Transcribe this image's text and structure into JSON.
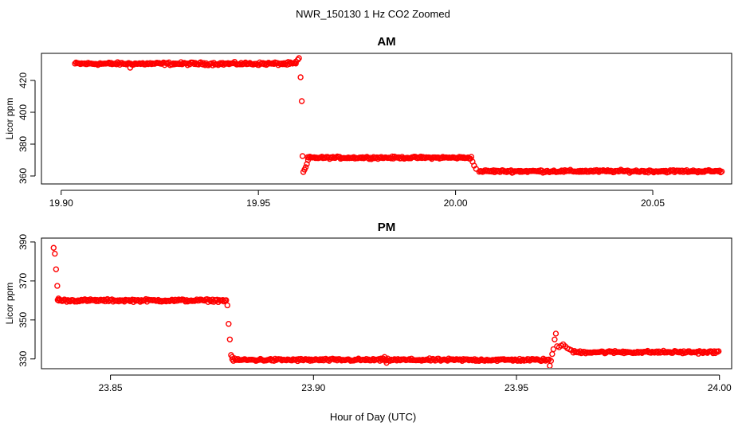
{
  "chart_data": [
    {
      "type": "scatter",
      "suptitle": "NWR_150130  1 Hz CO2 Zoomed",
      "title": "AM",
      "xlabel": "",
      "ylabel": "Licor ppm",
      "xlim": [
        19.895,
        20.07
      ],
      "ylim": [
        355,
        437
      ],
      "xticks": [
        {
          "value": 19.9,
          "label": "19.90"
        },
        {
          "value": 19.95,
          "label": "19.95"
        },
        {
          "value": 20.0,
          "label": "20.00"
        },
        {
          "value": 20.05,
          "label": "20.05"
        }
      ],
      "yticks": [
        {
          "value": 360,
          "label": "360"
        },
        {
          "value": 380,
          "label": "380"
        },
        {
          "value": 400,
          "label": "400"
        },
        {
          "value": 420,
          "label": "420"
        }
      ],
      "marker": {
        "shape": "open-circle",
        "color": "#ff0000"
      },
      "segments": [
        {
          "x_start": 19.9035,
          "x_end": 19.9595,
          "y": 430.5,
          "noise": 0.8
        },
        {
          "x_start": 19.9625,
          "x_end": 20.004,
          "y": 371.5,
          "noise": 0.6
        },
        {
          "x_start": 20.006,
          "x_end": 20.0675,
          "y": 363.0,
          "noise": 0.7
        }
      ],
      "points": [
        [
          19.9175,
          428.0
        ],
        [
          19.9595,
          431.8
        ],
        [
          19.96,
          433.0
        ],
        [
          19.9603,
          434.0
        ],
        [
          19.9607,
          422.0
        ],
        [
          19.961,
          407.0
        ],
        [
          19.9612,
          372.5
        ],
        [
          19.9614,
          362.5
        ],
        [
          19.9617,
          364.0
        ],
        [
          19.962,
          365.5
        ],
        [
          19.9623,
          367.5
        ],
        [
          19.9626,
          370.0
        ],
        [
          20.0043,
          369.0
        ],
        [
          20.0047,
          366.5
        ],
        [
          20.0052,
          364.5
        ]
      ]
    },
    {
      "type": "scatter",
      "title": "PM",
      "xlabel": "Hour of Day (UTC)",
      "ylabel": "Licor ppm",
      "xlim": [
        23.833,
        24.003
      ],
      "ylim": [
        325,
        392
      ],
      "xticks": [
        {
          "value": 23.85,
          "label": "23.85"
        },
        {
          "value": 23.9,
          "label": "23.90"
        },
        {
          "value": 23.95,
          "label": "23.95"
        },
        {
          "value": 24.0,
          "label": "24.00"
        }
      ],
      "yticks": [
        {
          "value": 330,
          "label": "330"
        },
        {
          "value": 350,
          "label": "350"
        },
        {
          "value": 370,
          "label": "370"
        },
        {
          "value": 390,
          "label": "390"
        }
      ],
      "marker": {
        "shape": "open-circle",
        "color": "#ff0000"
      },
      "segments": [
        {
          "x_start": 23.837,
          "x_end": 23.8785,
          "y": 360.0,
          "noise": 0.6
        },
        {
          "x_start": 23.88,
          "x_end": 23.958,
          "y": 329.5,
          "noise": 0.6
        },
        {
          "x_start": 23.964,
          "x_end": 23.9998,
          "y": 333.5,
          "noise": 0.6
        }
      ],
      "points": [
        [
          23.836,
          387.0
        ],
        [
          23.8363,
          384.0
        ],
        [
          23.8366,
          376.0
        ],
        [
          23.8369,
          367.5
        ],
        [
          23.8372,
          361.0
        ],
        [
          23.8788,
          357.5
        ],
        [
          23.8791,
          348.0
        ],
        [
          23.8794,
          340.0
        ],
        [
          23.8797,
          332.0
        ],
        [
          23.88,
          331.0
        ],
        [
          23.9175,
          331.0
        ],
        [
          23.918,
          328.0
        ],
        [
          23.9582,
          326.5
        ],
        [
          23.9585,
          329.0
        ],
        [
          23.9588,
          332.5
        ],
        [
          23.9591,
          335.0
        ],
        [
          23.9594,
          340.0
        ],
        [
          23.9597,
          343.0
        ],
        [
          23.96,
          336.5
        ],
        [
          23.9605,
          336.0
        ],
        [
          23.961,
          336.8
        ],
        [
          23.9615,
          337.5
        ],
        [
          23.962,
          336.5
        ],
        [
          23.9625,
          335.5
        ],
        [
          23.963,
          335.0
        ],
        [
          23.9635,
          334.5
        ]
      ]
    }
  ]
}
